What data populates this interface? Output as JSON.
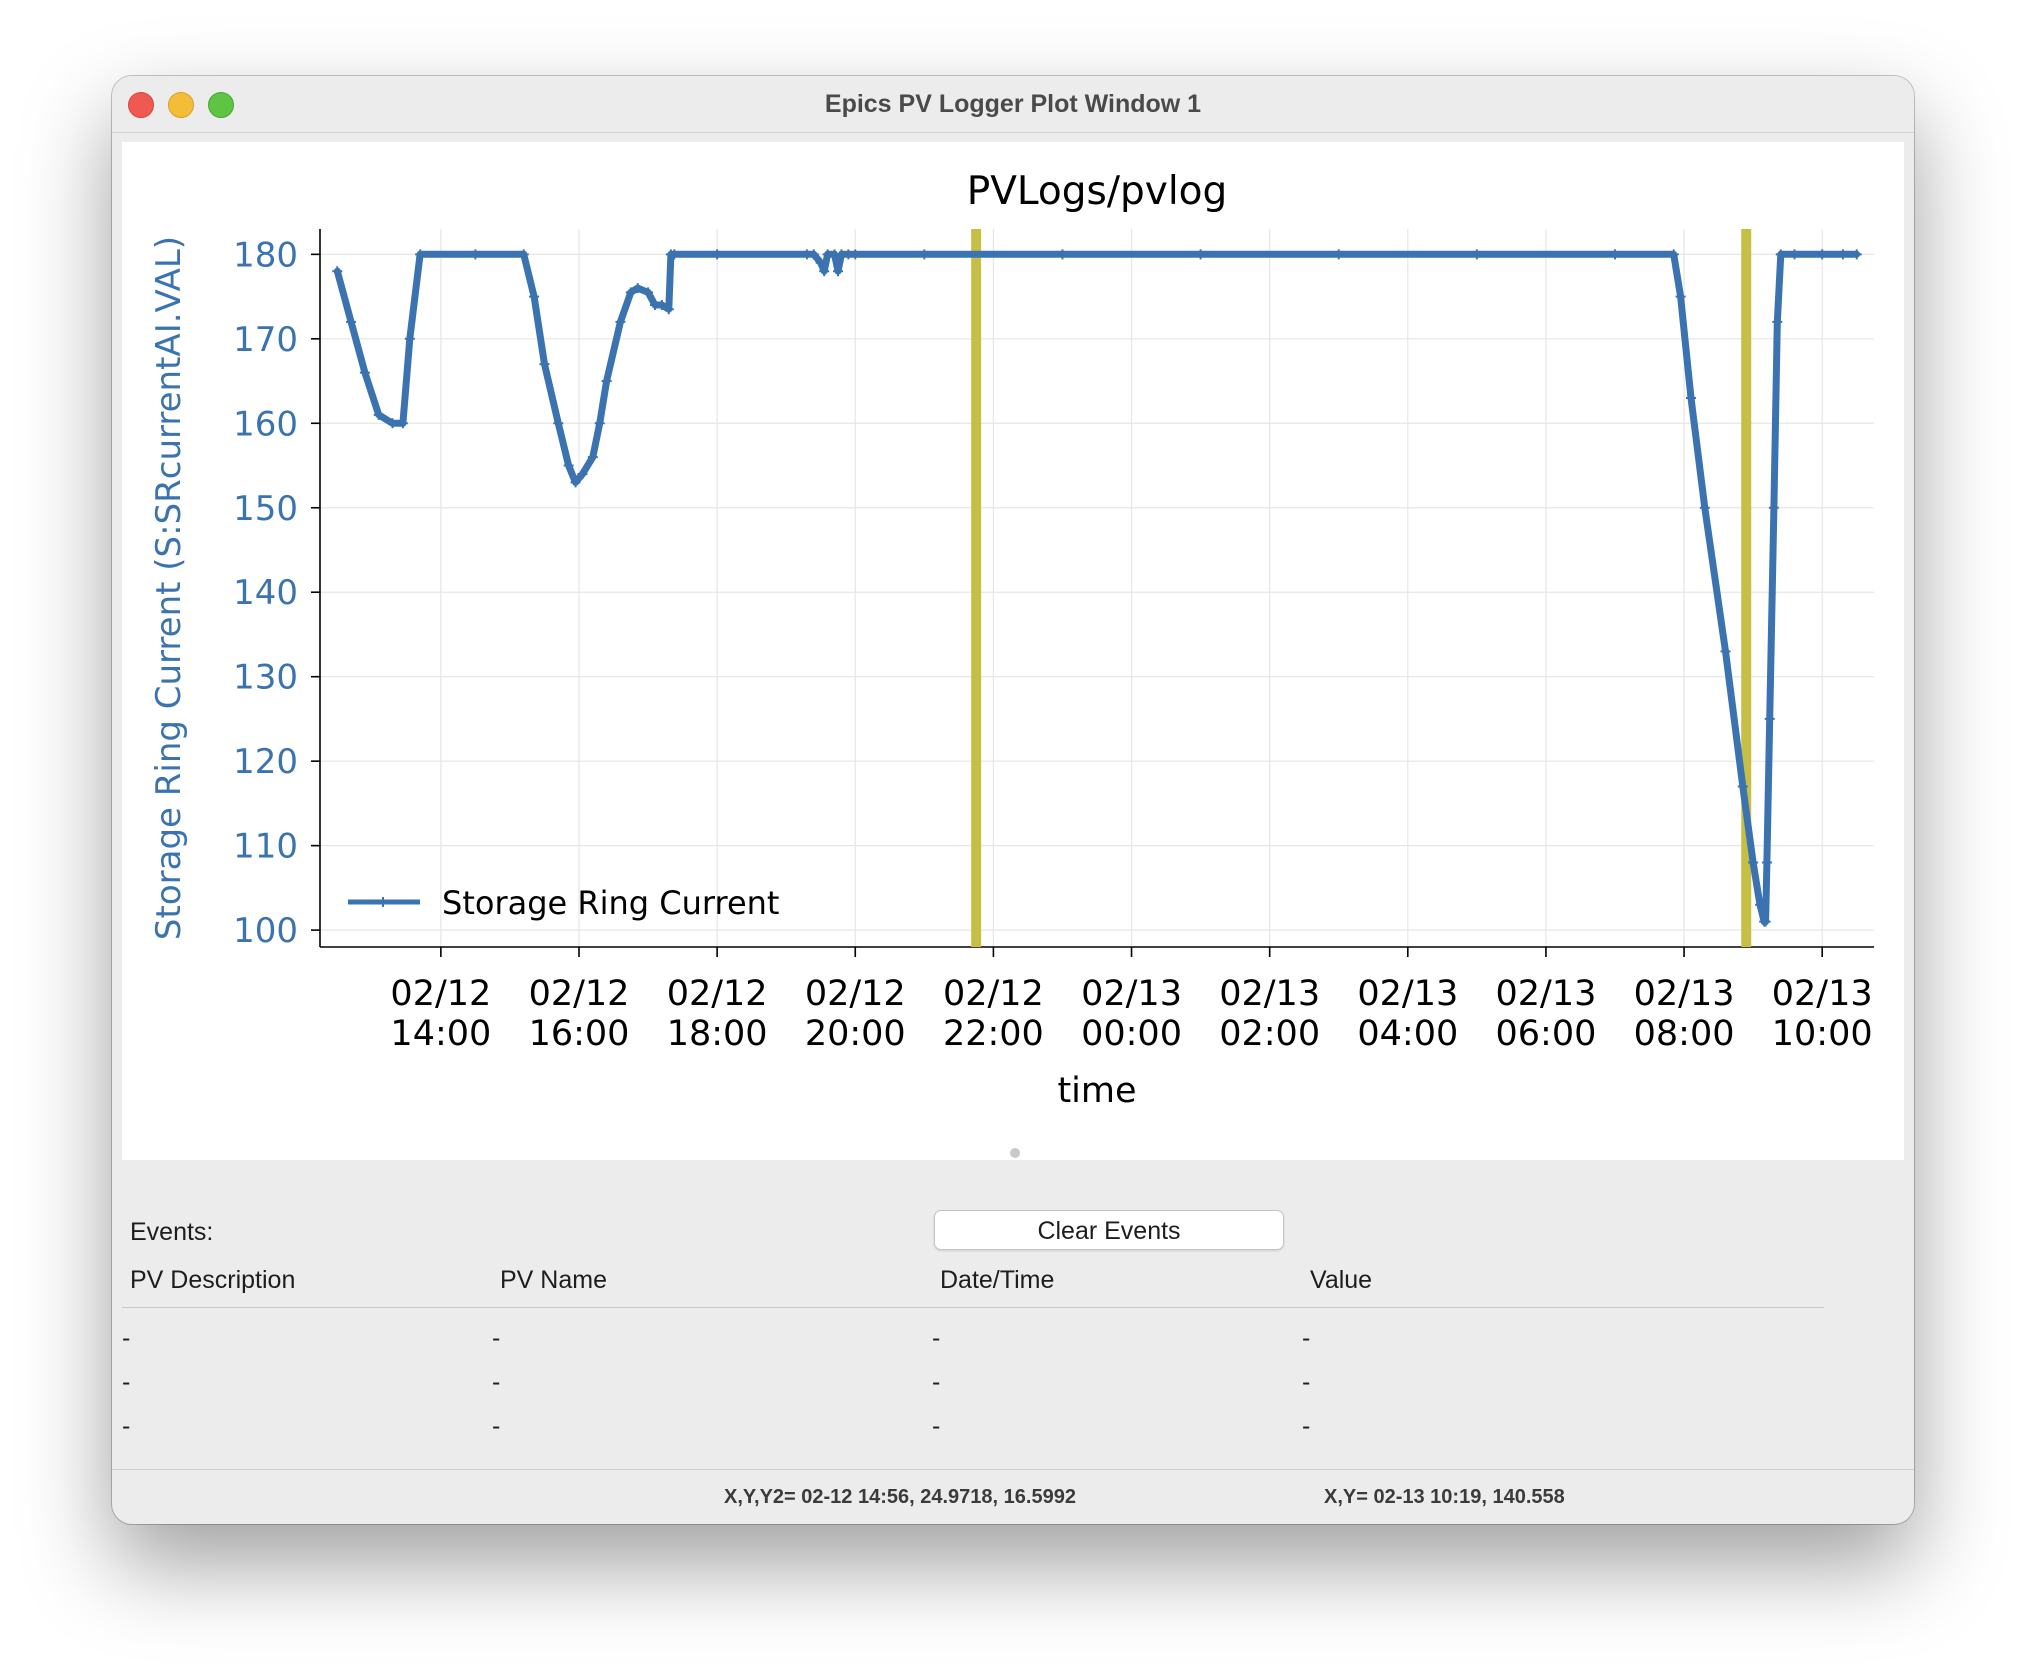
{
  "window": {
    "title": "Epics PV Logger Plot Window 1"
  },
  "chart_data": {
    "type": "line",
    "title": "PVLogs/pvlog",
    "xlabel": "time",
    "ylabel": "Storage Ring Current (S:SRcurrentAI.VAL)",
    "ylim": [
      98,
      183
    ],
    "xlim_hours": [
      12.25,
      34.75
    ],
    "yticks": [
      100,
      110,
      120,
      130,
      140,
      150,
      160,
      170,
      180
    ],
    "xticks": [
      {
        "date": "02/12",
        "time": "14:00",
        "hours": 14
      },
      {
        "date": "02/12",
        "time": "16:00",
        "hours": 16
      },
      {
        "date": "02/12",
        "time": "18:00",
        "hours": 18
      },
      {
        "date": "02/12",
        "time": "20:00",
        "hours": 20
      },
      {
        "date": "02/12",
        "time": "22:00",
        "hours": 22
      },
      {
        "date": "02/13",
        "time": "00:00",
        "hours": 24
      },
      {
        "date": "02/13",
        "time": "02:00",
        "hours": 26
      },
      {
        "date": "02/13",
        "time": "04:00",
        "hours": 28
      },
      {
        "date": "02/13",
        "time": "06:00",
        "hours": 30
      },
      {
        "date": "02/13",
        "time": "08:00",
        "hours": 32
      },
      {
        "date": "02/13",
        "time": "10:00",
        "hours": 34
      }
    ],
    "grid": true,
    "legend_position": "lower-left",
    "series": [
      {
        "name": "Storage Ring Current",
        "color": "#3b73b0",
        "x_hours": [
          12.5,
          12.7,
          12.9,
          13.1,
          13.3,
          13.45,
          13.55,
          13.7,
          14.5,
          15.2,
          15.35,
          15.5,
          15.7,
          15.85,
          15.95,
          16.05,
          16.2,
          16.3,
          16.4,
          16.6,
          16.75,
          16.85,
          17.0,
          17.1,
          17.2,
          17.3,
          17.33,
          17.38,
          18.0,
          19.3,
          19.4,
          19.5,
          19.55,
          19.6,
          19.7,
          19.75,
          19.8,
          19.9,
          20.0,
          21.0,
          23.0,
          25.0,
          27.0,
          29.0,
          31.0,
          31.85,
          31.95,
          32.1,
          32.3,
          32.6,
          32.85,
          33.0,
          33.1,
          33.16,
          33.18,
          33.2,
          33.24,
          33.3,
          33.35,
          33.4,
          33.6,
          34.0,
          34.3,
          34.5
        ],
        "y": [
          178,
          172,
          166,
          161,
          160,
          160,
          170,
          180,
          180,
          180,
          175,
          167,
          160,
          155,
          153,
          154,
          156,
          160,
          165,
          172,
          175.5,
          176,
          175.5,
          174,
          174,
          173.5,
          180,
          180,
          180,
          180,
          180,
          179,
          178,
          180,
          180,
          178,
          180,
          180,
          180,
          180,
          180,
          180,
          180,
          180,
          180,
          180,
          175,
          163,
          150,
          133,
          117,
          108,
          103,
          101,
          101,
          108,
          125,
          150,
          172,
          180,
          180,
          180,
          180,
          180
        ]
      }
    ],
    "markers": [
      {
        "hours": 21.75,
        "color": "#c6bf46"
      },
      {
        "hours": 32.9,
        "color": "#c6bf46"
      }
    ]
  },
  "events": {
    "label": "Events:",
    "clear_button": "Clear Events",
    "columns": [
      "PV Description",
      "PV Name",
      "Date/Time",
      "Value"
    ],
    "rows": [
      [
        "-",
        "-",
        "-",
        "-"
      ],
      [
        "-",
        "-",
        "-",
        "-"
      ],
      [
        "-",
        "-",
        "-",
        "-"
      ]
    ]
  },
  "status": {
    "left": "X,Y,Y2= 02-12 14:56, 24.9718, 16.5992",
    "right": "X,Y= 02-13 10:19, 140.558"
  }
}
